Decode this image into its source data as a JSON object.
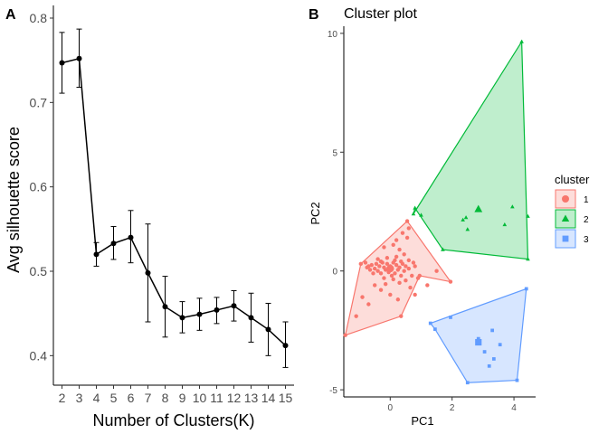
{
  "panels": {
    "a_letter": "A",
    "b_letter": "B"
  },
  "chart_data": [
    {
      "type": "line",
      "title": "",
      "xlabel": "Number of Clusters(K)",
      "ylabel": "Avg silhouette score",
      "x": [
        2,
        3,
        4,
        5,
        6,
        7,
        8,
        9,
        10,
        11,
        12,
        13,
        14,
        15
      ],
      "x_tick_labels": [
        "2",
        "3",
        "4",
        "5",
        "6",
        "7",
        "8",
        "9",
        "10",
        "11",
        "12",
        "13",
        "14",
        "15"
      ],
      "series": [
        {
          "values": [
            0.747,
            0.752,
            0.52,
            0.533,
            0.54,
            0.498,
            0.458,
            0.445,
            0.449,
            0.454,
            0.459,
            0.445,
            0.431,
            0.412
          ],
          "error_low": [
            0.711,
            0.718,
            0.506,
            0.514,
            0.51,
            0.44,
            0.422,
            0.427,
            0.43,
            0.438,
            0.441,
            0.416,
            0.4,
            0.386
          ],
          "error_high": [
            0.783,
            0.787,
            0.534,
            0.553,
            0.572,
            0.556,
            0.494,
            0.464,
            0.468,
            0.469,
            0.477,
            0.474,
            0.462,
            0.44
          ]
        }
      ],
      "ylim": [
        0.365,
        0.815
      ],
      "y_ticks": [
        0.4,
        0.5,
        0.6,
        0.7,
        0.8
      ],
      "y_tick_labels": [
        "0.4",
        "0.5",
        "0.6",
        "0.7",
        "0.8"
      ],
      "grid": false,
      "color": "#000000"
    },
    {
      "type": "scatter",
      "title": "Cluster plot",
      "xlabel": "PC1",
      "ylabel": "PC2",
      "xlim": [
        -1.5,
        4.7
      ],
      "ylim": [
        -5.3,
        10.3
      ],
      "x_ticks": [
        0,
        2,
        4
      ],
      "x_tick_labels": [
        "0",
        "2",
        "4"
      ],
      "y_ticks": [
        -5,
        0,
        5,
        10
      ],
      "y_tick_labels": [
        "-5",
        "0",
        "5",
        "10"
      ],
      "grid": false,
      "legend": {
        "title": "cluster",
        "placement": "right",
        "entries": [
          "1",
          "2",
          "3"
        ]
      },
      "series": [
        {
          "name": "1",
          "shape": "circle",
          "color": "#F8766D",
          "hull": [
            [
              -1.45,
              -2.7
            ],
            [
              0.35,
              -1.9
            ],
            [
              0.95,
              -0.2
            ],
            [
              1.95,
              -0.45
            ],
            [
              0.55,
              2.1
            ],
            [
              -0.95,
              0.3
            ]
          ],
          "centroid": [
            0.0,
            0.1
          ],
          "points": [
            [
              -0.7,
              0.2
            ],
            [
              -0.6,
              0.25
            ],
            [
              -0.5,
              0.1
            ],
            [
              -0.45,
              0.3
            ],
            [
              -0.4,
              0.0
            ],
            [
              -0.35,
              0.2
            ],
            [
              -0.3,
              -0.1
            ],
            [
              -0.25,
              0.35
            ],
            [
              -0.2,
              0.15
            ],
            [
              -0.15,
              0.05
            ],
            [
              -0.1,
              0.3
            ],
            [
              -0.05,
              -0.05
            ],
            [
              0.0,
              0.2
            ],
            [
              0.05,
              0.1
            ],
            [
              0.1,
              0.35
            ],
            [
              0.15,
              -0.1
            ],
            [
              0.2,
              0.25
            ],
            [
              0.25,
              0.05
            ],
            [
              0.3,
              0.15
            ],
            [
              0.35,
              -0.2
            ],
            [
              0.4,
              0.3
            ],
            [
              0.45,
              0.0
            ],
            [
              0.5,
              0.2
            ],
            [
              -0.55,
              -0.1
            ],
            [
              -0.65,
              0.05
            ],
            [
              -0.75,
              0.15
            ],
            [
              -0.8,
              0.35
            ],
            [
              -0.2,
              -0.3
            ],
            [
              0.1,
              -0.35
            ],
            [
              0.3,
              -0.5
            ],
            [
              0.5,
              -0.4
            ],
            [
              0.6,
              0.1
            ],
            [
              0.7,
              -0.2
            ],
            [
              0.8,
              0.2
            ],
            [
              0.9,
              -0.3
            ],
            [
              -0.4,
              0.5
            ],
            [
              -0.1,
              0.55
            ],
            [
              0.2,
              0.6
            ],
            [
              0.45,
              0.7
            ],
            [
              0.3,
              0.9
            ],
            [
              0.1,
              1.1
            ],
            [
              -0.2,
              1.0
            ],
            [
              0.55,
              1.4
            ],
            [
              0.4,
              1.6
            ],
            [
              0.2,
              1.3
            ],
            [
              0.6,
              1.8
            ],
            [
              0.55,
              2.1
            ],
            [
              -0.5,
              -0.6
            ],
            [
              -0.3,
              -0.8
            ],
            [
              0.0,
              -1.0
            ],
            [
              0.25,
              -1.2
            ],
            [
              -0.7,
              -1.4
            ],
            [
              -0.9,
              -1.1
            ],
            [
              -1.1,
              -1.9
            ],
            [
              -1.45,
              -2.7
            ],
            [
              0.35,
              -1.9
            ],
            [
              0.95,
              -0.2
            ],
            [
              1.95,
              -0.45
            ],
            [
              1.2,
              -0.6
            ],
            [
              1.5,
              0.0
            ],
            [
              -0.95,
              0.3
            ],
            [
              0.65,
              -0.7
            ],
            [
              0.8,
              -1.0
            ],
            [
              -0.15,
              -0.55
            ],
            [
              0.15,
              0.45
            ],
            [
              0.05,
              -0.2
            ],
            [
              -0.3,
              0.4
            ],
            [
              0.35,
              0.4
            ],
            [
              0.6,
              0.45
            ],
            [
              0.75,
              0.35
            ]
          ]
        },
        {
          "name": "2",
          "shape": "triangle",
          "color": "#00BA38",
          "hull": [
            [
              0.8,
              2.65
            ],
            [
              1.7,
              0.9
            ],
            [
              4.45,
              0.5
            ],
            [
              4.25,
              9.65
            ],
            [
              0.75,
              2.4
            ]
          ],
          "centroid": [
            2.85,
            2.6
          ],
          "points": [
            [
              0.8,
              2.65
            ],
            [
              0.75,
              2.4
            ],
            [
              1.0,
              2.35
            ],
            [
              1.7,
              0.9
            ],
            [
              2.5,
              1.75
            ],
            [
              2.35,
              2.15
            ],
            [
              3.7,
              1.95
            ],
            [
              3.95,
              2.7
            ],
            [
              4.45,
              2.3
            ],
            [
              4.45,
              0.5
            ],
            [
              4.25,
              9.65
            ],
            [
              2.45,
              2.25
            ]
          ]
        },
        {
          "name": "3",
          "shape": "square",
          "color": "#619CFF",
          "hull": [
            [
              1.3,
              -2.2
            ],
            [
              4.4,
              -0.75
            ],
            [
              4.1,
              -4.6
            ],
            [
              2.5,
              -4.7
            ],
            [
              1.45,
              -2.45
            ]
          ],
          "centroid": [
            2.85,
            -3.0
          ],
          "points": [
            [
              1.3,
              -2.2
            ],
            [
              1.45,
              -2.45
            ],
            [
              1.95,
              -1.95
            ],
            [
              4.4,
              -0.75
            ],
            [
              3.3,
              -2.5
            ],
            [
              3.05,
              -3.4
            ],
            [
              3.35,
              -3.7
            ],
            [
              3.55,
              -3.1
            ],
            [
              3.2,
              -4.0
            ],
            [
              4.1,
              -4.6
            ],
            [
              2.5,
              -4.7
            ],
            [
              2.85,
              -2.85
            ]
          ]
        }
      ]
    }
  ]
}
